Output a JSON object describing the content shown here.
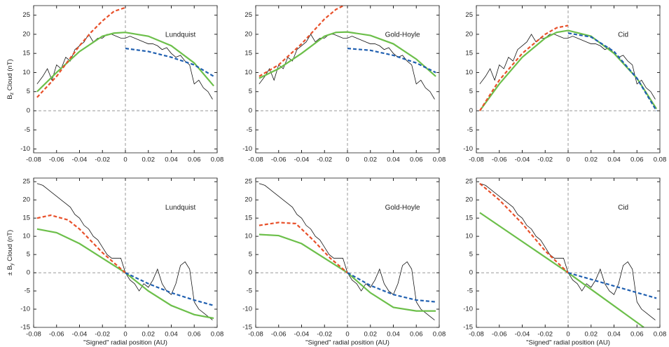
{
  "chart_data": [
    {
      "type": "line",
      "title": "Lundquist",
      "ylabel": {
        "main": "B",
        "sub": "z",
        "rest": " Cloud (nT)"
      },
      "xlim": [
        -0.08,
        0.08
      ],
      "ylim": [
        -11,
        27.5
      ],
      "xticks": [
        -0.08,
        -0.06,
        -0.04,
        -0.02,
        0,
        0.02,
        0.04,
        0.06,
        0.08
      ],
      "yticks": [
        -10,
        -5,
        0,
        5,
        10,
        15,
        20,
        25
      ],
      "reference_lines": {
        "x": 0,
        "y": 0
      },
      "series": [
        {
          "color": "#111111",
          "style": "solid",
          "x": [
            -0.077,
            -0.072,
            -0.068,
            -0.064,
            -0.06,
            -0.056,
            -0.052,
            -0.048,
            -0.044,
            -0.04,
            -0.036,
            -0.032,
            -0.028,
            -0.024,
            -0.02,
            -0.016,
            -0.012,
            -0.008,
            -0.004,
            0,
            0.004,
            0.008,
            0.012,
            0.016,
            0.02,
            0.024,
            0.028,
            0.032,
            0.036,
            0.04,
            0.044,
            0.048,
            0.052,
            0.056,
            0.06,
            0.064,
            0.068,
            0.072,
            0.076
          ],
          "values": [
            7,
            9,
            11,
            8,
            12,
            11,
            14,
            13,
            16,
            17,
            18,
            20,
            18,
            19,
            19,
            20,
            20,
            19.5,
            19,
            19,
            19.5,
            19,
            18.5,
            18,
            17.5,
            17.5,
            17,
            16,
            16.5,
            15,
            14,
            14.5,
            13,
            12,
            7,
            8,
            6,
            5,
            3
          ]
        },
        {
          "color": "#6cbf4a",
          "style": "solid",
          "x": [
            -0.077,
            -0.06,
            -0.04,
            -0.02,
            -0.01,
            0,
            0.02,
            0.04,
            0.06,
            0.077
          ],
          "values": [
            5,
            10,
            15.5,
            19.5,
            20.3,
            20.5,
            19.5,
            17,
            12.5,
            6.5
          ]
        },
        {
          "color": "#e8502a",
          "style": "dashed",
          "x": [
            -0.077,
            -0.06,
            -0.04,
            -0.03,
            -0.02,
            -0.01,
            0
          ],
          "values": [
            3.5,
            9,
            17,
            20.5,
            23.5,
            26,
            27
          ]
        },
        {
          "color": "#1f5fb0",
          "style": "dashed",
          "x": [
            0,
            0.02,
            0.04,
            0.06,
            0.077
          ],
          "values": [
            16.3,
            15.5,
            14,
            12,
            9
          ]
        }
      ]
    },
    {
      "type": "line",
      "title": "Gold-Hoyle",
      "xlim": [
        -0.08,
        0.08
      ],
      "ylim": [
        -11,
        27.5
      ],
      "xticks": [
        -0.08,
        -0.06,
        -0.04,
        -0.02,
        0,
        0.02,
        0.04,
        0.06,
        0.08
      ],
      "yticks": [
        -10,
        -5,
        0,
        5,
        10,
        15,
        20,
        25
      ],
      "reference_lines": {
        "x": 0,
        "y": 0
      },
      "series": [
        {
          "color": "#111111",
          "style": "solid",
          "x": [
            -0.077,
            -0.072,
            -0.068,
            -0.064,
            -0.06,
            -0.056,
            -0.052,
            -0.048,
            -0.044,
            -0.04,
            -0.036,
            -0.032,
            -0.028,
            -0.024,
            -0.02,
            -0.016,
            -0.012,
            -0.008,
            -0.004,
            0,
            0.004,
            0.008,
            0.012,
            0.016,
            0.02,
            0.024,
            0.028,
            0.032,
            0.036,
            0.04,
            0.044,
            0.048,
            0.052,
            0.056,
            0.06,
            0.064,
            0.068,
            0.072,
            0.076
          ],
          "values": [
            7,
            9,
            11,
            8,
            12,
            11,
            14,
            13,
            16,
            17,
            18,
            20,
            18,
            19,
            19,
            20,
            20,
            19.5,
            19,
            19,
            19.5,
            19,
            18.5,
            18,
            17.5,
            17.5,
            17,
            16,
            16.5,
            15,
            14,
            14.5,
            13,
            12,
            7,
            8,
            6,
            5,
            3
          ]
        },
        {
          "color": "#6cbf4a",
          "style": "solid",
          "x": [
            -0.077,
            -0.06,
            -0.04,
            -0.02,
            -0.01,
            0,
            0.02,
            0.04,
            0.06,
            0.077
          ],
          "values": [
            8.5,
            11,
            15,
            19.5,
            20.5,
            20.6,
            19.7,
            17.5,
            13.5,
            9
          ]
        },
        {
          "color": "#e8502a",
          "style": "dashed",
          "x": [
            -0.077,
            -0.06,
            -0.04,
            -0.02,
            -0.01,
            0
          ],
          "values": [
            9,
            12,
            17.5,
            24,
            26.5,
            28
          ]
        },
        {
          "color": "#1f5fb0",
          "style": "dashed",
          "x": [
            0,
            0.02,
            0.04,
            0.06,
            0.077
          ],
          "values": [
            16.3,
            15.8,
            14.5,
            12.5,
            10
          ]
        }
      ]
    },
    {
      "type": "line",
      "title": "Cid",
      "xlim": [
        -0.08,
        0.08
      ],
      "ylim": [
        -11,
        27.5
      ],
      "xticks": [
        -0.08,
        -0.06,
        -0.04,
        -0.02,
        0,
        0.02,
        0.04,
        0.06,
        0.08
      ],
      "yticks": [
        -10,
        -5,
        0,
        5,
        10,
        15,
        20,
        25
      ],
      "reference_lines": {
        "x": 0,
        "y": 0
      },
      "series": [
        {
          "color": "#111111",
          "style": "solid",
          "x": [
            -0.077,
            -0.072,
            -0.068,
            -0.064,
            -0.06,
            -0.056,
            -0.052,
            -0.048,
            -0.044,
            -0.04,
            -0.036,
            -0.032,
            -0.028,
            -0.024,
            -0.02,
            -0.016,
            -0.012,
            -0.008,
            -0.004,
            0,
            0.004,
            0.008,
            0.012,
            0.016,
            0.02,
            0.024,
            0.028,
            0.032,
            0.036,
            0.04,
            0.044,
            0.048,
            0.052,
            0.056,
            0.06,
            0.064,
            0.068,
            0.072,
            0.076
          ],
          "values": [
            7,
            9,
            11,
            8,
            12,
            11,
            14,
            13,
            16,
            17,
            18,
            20,
            18,
            19,
            19,
            20,
            20,
            19.5,
            19,
            19,
            19.5,
            19,
            18.5,
            18,
            17.5,
            17.5,
            17,
            16,
            16.5,
            15,
            14,
            14.5,
            13,
            12,
            7,
            8,
            6,
            5,
            3
          ]
        },
        {
          "color": "#6cbf4a",
          "style": "solid",
          "x": [
            -0.077,
            -0.06,
            -0.04,
            -0.02,
            -0.01,
            0,
            0.02,
            0.04,
            0.06,
            0.077
          ],
          "values": [
            0,
            7,
            14,
            19,
            20.5,
            21,
            19.5,
            15,
            8.5,
            0.5
          ]
        },
        {
          "color": "#e8502a",
          "style": "dashed",
          "x": [
            -0.077,
            -0.06,
            -0.04,
            -0.02,
            -0.01,
            0
          ],
          "values": [
            0,
            8,
            15,
            20,
            21.7,
            22.3
          ]
        },
        {
          "color": "#1f5fb0",
          "style": "dashed",
          "x": [
            0,
            0.02,
            0.04,
            0.06,
            0.077
          ],
          "values": [
            20.3,
            19.3,
            15.5,
            8.5,
            0
          ]
        }
      ]
    },
    {
      "type": "line",
      "title": "Lundquist",
      "ylabel": {
        "main": "± B",
        "sub": "y",
        "rest": " Cloud (nT)"
      },
      "xlabel": "\"Signed\" radial position (AU)",
      "xlim": [
        -0.08,
        0.08
      ],
      "ylim": [
        -15,
        26
      ],
      "xticks": [
        -0.08,
        -0.06,
        -0.04,
        -0.02,
        0,
        0.02,
        0.04,
        0.06,
        0.08
      ],
      "yticks": [
        -15,
        -10,
        -5,
        0,
        5,
        10,
        15,
        20,
        25
      ],
      "reference_lines": {
        "x": 0,
        "y": 0
      },
      "series": [
        {
          "color": "#111111",
          "style": "solid",
          "x": [
            -0.077,
            -0.072,
            -0.068,
            -0.064,
            -0.06,
            -0.056,
            -0.052,
            -0.048,
            -0.044,
            -0.04,
            -0.036,
            -0.032,
            -0.028,
            -0.024,
            -0.02,
            -0.016,
            -0.012,
            -0.008,
            -0.004,
            0,
            0.004,
            0.008,
            0.012,
            0.016,
            0.02,
            0.024,
            0.028,
            0.032,
            0.036,
            0.04,
            0.044,
            0.048,
            0.052,
            0.056,
            0.06,
            0.064,
            0.068,
            0.072,
            0.076
          ],
          "values": [
            24.5,
            24,
            23,
            22,
            21,
            20,
            19,
            18,
            16,
            15,
            13,
            12,
            10,
            9,
            7,
            5,
            4,
            4,
            4,
            0,
            -2,
            -3,
            -5,
            -3,
            -4,
            -2,
            1,
            -3,
            -5,
            -6,
            -3,
            2,
            3,
            1,
            -8,
            -10,
            -11,
            -12,
            -13
          ]
        },
        {
          "color": "#6cbf4a",
          "style": "solid",
          "x": [
            -0.077,
            -0.06,
            -0.04,
            -0.02,
            0,
            0.02,
            0.04,
            0.06,
            0.077
          ],
          "values": [
            12,
            11,
            8,
            4,
            0,
            -5,
            -9,
            -11.5,
            -12.5
          ]
        },
        {
          "color": "#e8502a",
          "style": "dashed",
          "x": [
            -0.077,
            -0.065,
            -0.05,
            -0.04,
            -0.02,
            0
          ],
          "values": [
            15,
            15.8,
            14.5,
            12,
            5.5,
            0
          ]
        },
        {
          "color": "#1f5fb0",
          "style": "dashed",
          "x": [
            0,
            0.02,
            0.04,
            0.06,
            0.077
          ],
          "values": [
            0,
            -3,
            -5.5,
            -7.5,
            -9
          ]
        }
      ]
    },
    {
      "type": "line",
      "title": "Gold-Hoyle",
      "xlabel": "\"Signed\" radial position (AU)",
      "xlim": [
        -0.08,
        0.08
      ],
      "ylim": [
        -15,
        26
      ],
      "xticks": [
        -0.08,
        -0.06,
        -0.04,
        -0.02,
        0,
        0.02,
        0.04,
        0.06,
        0.08
      ],
      "yticks": [
        -15,
        -10,
        -5,
        0,
        5,
        10,
        15,
        20,
        25
      ],
      "reference_lines": {
        "x": 0,
        "y": 0
      },
      "series": [
        {
          "color": "#111111",
          "style": "solid",
          "x": [
            -0.077,
            -0.072,
            -0.068,
            -0.064,
            -0.06,
            -0.056,
            -0.052,
            -0.048,
            -0.044,
            -0.04,
            -0.036,
            -0.032,
            -0.028,
            -0.024,
            -0.02,
            -0.016,
            -0.012,
            -0.008,
            -0.004,
            0,
            0.004,
            0.008,
            0.012,
            0.016,
            0.02,
            0.024,
            0.028,
            0.032,
            0.036,
            0.04,
            0.044,
            0.048,
            0.052,
            0.056,
            0.06,
            0.064,
            0.068,
            0.072,
            0.076
          ],
          "values": [
            24.5,
            24,
            23,
            22,
            21,
            20,
            19,
            18,
            16,
            15,
            13,
            12,
            10,
            9,
            7,
            5,
            4,
            4,
            4,
            0,
            -2,
            -3,
            -5,
            -3,
            -4,
            -2,
            1,
            -3,
            -5,
            -6,
            -3,
            2,
            3,
            1,
            -8,
            -10,
            -11,
            -12,
            -13
          ]
        },
        {
          "color": "#6cbf4a",
          "style": "solid",
          "x": [
            -0.077,
            -0.06,
            -0.04,
            -0.02,
            0,
            0.02,
            0.04,
            0.06,
            0.077
          ],
          "values": [
            10.5,
            10.2,
            8,
            4,
            0,
            -5.5,
            -9.5,
            -10.5,
            -10.5
          ]
        },
        {
          "color": "#e8502a",
          "style": "dashed",
          "x": [
            -0.077,
            -0.06,
            -0.045,
            -0.03,
            -0.015,
            0
          ],
          "values": [
            13,
            13.8,
            13.5,
            9,
            4,
            0
          ]
        },
        {
          "color": "#1f5fb0",
          "style": "dashed",
          "x": [
            0,
            0.02,
            0.04,
            0.06,
            0.077
          ],
          "values": [
            0,
            -3.5,
            -6,
            -7.5,
            -8
          ]
        }
      ]
    },
    {
      "type": "line",
      "title": "Cid",
      "xlabel": "\"Signed\" radial position (AU)",
      "xlim": [
        -0.08,
        0.08
      ],
      "ylim": [
        -15,
        26
      ],
      "xticks": [
        -0.08,
        -0.06,
        -0.04,
        -0.02,
        0,
        0.02,
        0.04,
        0.06,
        0.08
      ],
      "yticks": [
        -15,
        -10,
        -5,
        0,
        5,
        10,
        15,
        20,
        25
      ],
      "reference_lines": {
        "x": 0,
        "y": 0
      },
      "series": [
        {
          "color": "#111111",
          "style": "solid",
          "x": [
            -0.077,
            -0.072,
            -0.068,
            -0.064,
            -0.06,
            -0.056,
            -0.052,
            -0.048,
            -0.044,
            -0.04,
            -0.036,
            -0.032,
            -0.028,
            -0.024,
            -0.02,
            -0.016,
            -0.012,
            -0.008,
            -0.004,
            0,
            0.004,
            0.008,
            0.012,
            0.016,
            0.02,
            0.024,
            0.028,
            0.032,
            0.036,
            0.04,
            0.044,
            0.048,
            0.052,
            0.056,
            0.06,
            0.064,
            0.068,
            0.072,
            0.076
          ],
          "values": [
            24.5,
            24,
            23,
            22,
            21,
            20,
            19,
            18,
            16,
            15,
            13,
            12,
            10,
            9,
            7,
            5,
            4,
            4,
            4,
            0,
            -2,
            -3,
            -5,
            -3,
            -4,
            -2,
            1,
            -3,
            -5,
            -6,
            -3,
            2,
            3,
            1,
            -8,
            -10,
            -11,
            -12,
            -13
          ]
        },
        {
          "color": "#6cbf4a",
          "style": "solid",
          "x": [
            -0.077,
            0,
            0.066
          ],
          "values": [
            16.5,
            0,
            -15
          ]
        },
        {
          "color": "#e8502a",
          "style": "dashed",
          "x": [
            -0.077,
            -0.06,
            -0.04,
            -0.02,
            0
          ],
          "values": [
            24.5,
            20,
            13.5,
            6,
            0
          ]
        },
        {
          "color": "#1f5fb0",
          "style": "dashed",
          "x": [
            0,
            0.077
          ],
          "values": [
            0,
            -7
          ]
        }
      ]
    }
  ]
}
